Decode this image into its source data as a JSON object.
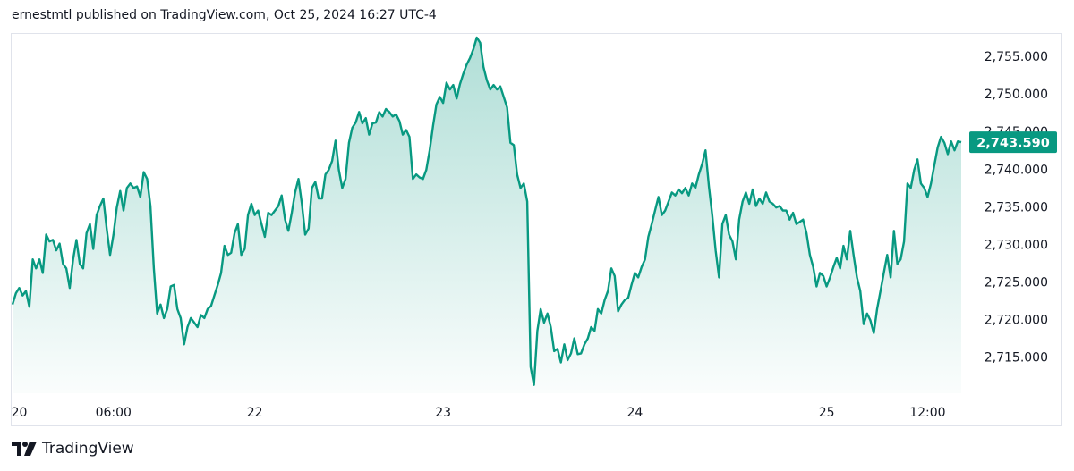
{
  "header": {
    "text": "ernestmtl published on TradingView.com, Oct 25, 2024 16:27 UTC-4"
  },
  "footer": {
    "brand": "TradingView"
  },
  "colors": {
    "line": "#089981",
    "label_bg": "#089981",
    "label_text": "#ffffff",
    "axis_text": "#131722",
    "border": "#e0e3eb"
  },
  "chart_data": {
    "type": "area",
    "title": "",
    "xlabel": "",
    "ylabel": "",
    "ylim": [
      2710.2,
      2758.1
    ],
    "y_ticks": [
      {
        "value": 2715,
        "label": "2,715.000"
      },
      {
        "value": 2720,
        "label": "2,720.000"
      },
      {
        "value": 2725,
        "label": "2,725.000"
      },
      {
        "value": 2730,
        "label": "2,730.000"
      },
      {
        "value": 2735,
        "label": "2,735.000"
      },
      {
        "value": 2740,
        "label": "2,740.000"
      },
      {
        "value": 2745,
        "label": "2,745.000"
      },
      {
        "value": 2750,
        "label": "2,750.000"
      },
      {
        "value": 2755,
        "label": "2,755.000"
      }
    ],
    "x_ticks": [
      {
        "index": 2,
        "label": "20"
      },
      {
        "index": 30,
        "label": "06:00"
      },
      {
        "index": 72,
        "label": "22"
      },
      {
        "index": 128,
        "label": "23"
      },
      {
        "index": 185,
        "label": "24"
      },
      {
        "index": 242,
        "label": "25"
      },
      {
        "index": 272,
        "label": "12:00"
      }
    ],
    "last_price": {
      "value": 2743.59,
      "label": "2,743.590"
    },
    "grid": false,
    "values": [
      2722.0,
      2723.5,
      2724.2,
      2723.2,
      2723.8,
      2721.7,
      2728.0,
      2726.8,
      2728.0,
      2726.2,
      2731.3,
      2730.4,
      2730.6,
      2729.2,
      2730.1,
      2727.4,
      2726.8,
      2724.2,
      2728.0,
      2730.6,
      2727.4,
      2726.8,
      2731.5,
      2732.7,
      2729.4,
      2733.9,
      2735.1,
      2736.1,
      2732.1,
      2728.6,
      2731.3,
      2734.9,
      2737.1,
      2734.5,
      2737.5,
      2738.1,
      2737.5,
      2737.7,
      2736.3,
      2739.6,
      2738.7,
      2735.1,
      2726.8,
      2720.8,
      2722.0,
      2720.2,
      2721.4,
      2724.4,
      2724.6,
      2721.4,
      2720.2,
      2716.7,
      2719.0,
      2720.2,
      2719.6,
      2719.0,
      2720.6,
      2720.2,
      2721.4,
      2721.8,
      2723.2,
      2724.6,
      2726.2,
      2729.8,
      2728.6,
      2728.9,
      2731.5,
      2732.7,
      2728.6,
      2729.4,
      2733.9,
      2735.4,
      2733.9,
      2734.5,
      2732.7,
      2731.0,
      2734.2,
      2733.9,
      2734.5,
      2735.1,
      2736.5,
      2733.3,
      2731.8,
      2734.2,
      2736.9,
      2738.7,
      2735.4,
      2731.3,
      2732.1,
      2737.5,
      2738.3,
      2736.1,
      2736.1,
      2739.3,
      2739.9,
      2741.1,
      2743.8,
      2739.9,
      2737.5,
      2738.7,
      2743.5,
      2745.5,
      2746.2,
      2747.6,
      2746.1,
      2746.8,
      2744.6,
      2746.1,
      2746.2,
      2747.6,
      2747.0,
      2748.0,
      2747.6,
      2747.0,
      2747.3,
      2746.4,
      2744.6,
      2745.2,
      2744.3,
      2738.7,
      2739.3,
      2738.9,
      2738.7,
      2739.9,
      2742.5,
      2745.8,
      2748.6,
      2749.6,
      2748.8,
      2751.5,
      2750.6,
      2751.2,
      2749.4,
      2751.3,
      2752.7,
      2753.9,
      2754.8,
      2756.0,
      2757.5,
      2756.8,
      2753.6,
      2751.8,
      2750.6,
      2751.2,
      2750.6,
      2751.0,
      2749.6,
      2748.2,
      2743.5,
      2743.2,
      2739.3,
      2737.5,
      2738.1,
      2735.7,
      2713.7,
      2711.3,
      2718.5,
      2721.4,
      2719.6,
      2720.8,
      2719.0,
      2715.8,
      2716.1,
      2714.3,
      2716.7,
      2714.6,
      2715.5,
      2717.5,
      2715.4,
      2715.5,
      2716.7,
      2717.5,
      2719.0,
      2718.5,
      2721.4,
      2720.8,
      2722.6,
      2723.8,
      2726.8,
      2725.8,
      2721.1,
      2722.0,
      2722.6,
      2722.9,
      2724.6,
      2726.2,
      2725.6,
      2727.0,
      2728.0,
      2731.0,
      2732.7,
      2734.5,
      2736.3,
      2733.9,
      2734.5,
      2735.7,
      2736.9,
      2736.5,
      2737.3,
      2736.8,
      2737.5,
      2736.5,
      2738.1,
      2737.5,
      2739.3,
      2740.7,
      2742.5,
      2737.7,
      2733.9,
      2729.2,
      2725.6,
      2732.7,
      2733.9,
      2731.3,
      2730.4,
      2728.0,
      2733.3,
      2735.7,
      2736.9,
      2735.4,
      2737.3,
      2735.1,
      2736.1,
      2735.4,
      2736.9,
      2735.7,
      2735.4,
      2734.9,
      2735.1,
      2734.5,
      2734.5,
      2733.3,
      2734.2,
      2732.7,
      2733.0,
      2733.3,
      2731.5,
      2728.6,
      2727.0,
      2724.4,
      2726.2,
      2725.8,
      2724.4,
      2725.6,
      2727.0,
      2728.2,
      2726.8,
      2729.8,
      2728.0,
      2731.8,
      2728.6,
      2725.6,
      2723.8,
      2719.4,
      2720.8,
      2719.9,
      2718.2,
      2721.4,
      2723.8,
      2726.2,
      2728.6,
      2725.6,
      2731.8,
      2727.4,
      2728.0,
      2730.4,
      2738.1,
      2737.5,
      2739.9,
      2741.3,
      2738.1,
      2737.5,
      2736.3,
      2738.1,
      2740.5,
      2742.9,
      2744.3,
      2743.5,
      2742.0,
      2743.7,
      2742.5,
      2743.7,
      2743.59
    ]
  }
}
